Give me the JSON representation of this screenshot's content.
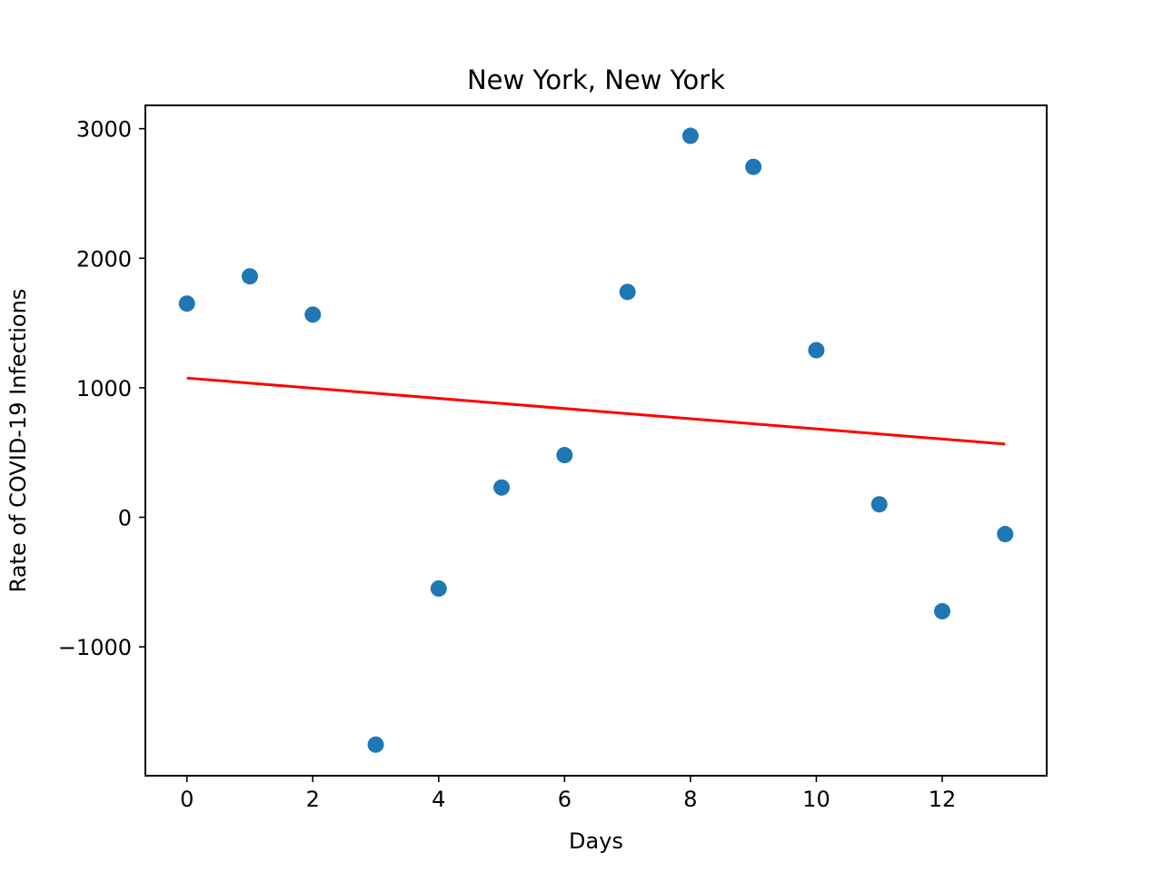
{
  "chart_data": {
    "type": "scatter",
    "title": "New York, New York",
    "xlabel": "Days",
    "ylabel": "Rate of COVID-19 Infections",
    "xlim": [
      -0.66,
      13.66
    ],
    "ylim": [
      -1995,
      3180
    ],
    "x_ticks": [
      0,
      2,
      4,
      6,
      8,
      10,
      12
    ],
    "x_tick_labels": [
      "0",
      "2",
      "4",
      "6",
      "8",
      "10",
      "12"
    ],
    "y_ticks": [
      -1000,
      0,
      1000,
      2000,
      3000
    ],
    "y_tick_labels": [
      "−1000",
      "0",
      "1000",
      "2000",
      "3000"
    ],
    "grid": false,
    "series": [
      {
        "kind": "scatter",
        "color": "#1f77b4",
        "x": [
          0,
          1,
          2,
          3,
          4,
          5,
          6,
          7,
          8,
          9,
          10,
          11,
          12,
          13
        ],
        "y": [
          1650,
          1860,
          1565,
          -1755,
          -550,
          230,
          480,
          1740,
          2945,
          2705,
          1290,
          100,
          -725,
          -130
        ]
      },
      {
        "kind": "line",
        "color": "#ff0000",
        "x": [
          0,
          13
        ],
        "y": [
          1075,
          565
        ]
      }
    ]
  }
}
